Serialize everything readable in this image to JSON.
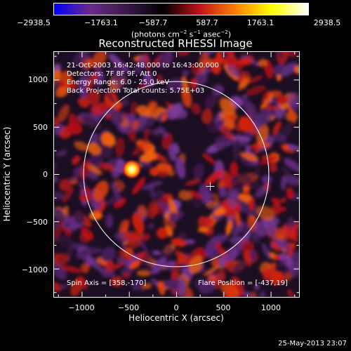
{
  "colorbar": {
    "tick_labels": [
      "−2938.5",
      "−1763.1",
      "−587.7",
      "587.7",
      "1763.1",
      "2938.5"
    ],
    "range": [
      -2938.5,
      2938.5
    ],
    "units_main": "(photons cm",
    "units_exp1": "−2",
    "units_mid1": " s",
    "units_exp2": "−1",
    "units_mid2": " asec",
    "units_exp3": "−2",
    "units_end": ")"
  },
  "chart_data": {
    "type": "heatmap",
    "title": "Reconstructed RHESSI Image",
    "xlabel": "Heliocentric X (arcsec)",
    "ylabel": "Heliocentric Y (arcsec)",
    "xlim": [
      -1300,
      1300
    ],
    "ylim": [
      -1300,
      1300
    ],
    "x_tick_labels": [
      "−1000",
      "−500",
      "0",
      "500",
      "1000"
    ],
    "x_tick_values": [
      -1000,
      -500,
      0,
      500,
      1000
    ],
    "y_tick_labels": [
      "1000",
      "500",
      "0",
      "−500",
      "−1000"
    ],
    "y_tick_values": [
      1000,
      500,
      0,
      -500,
      -1000
    ],
    "solar_limb_center": [
      0,
      0
    ],
    "solar_limb_radius": 980,
    "flare_marker": [
      360,
      -130
    ],
    "bright_source": [
      -470,
      50
    ],
    "colormap": [
      "#0000ff",
      "#6b2b8a",
      "#3a1a48",
      "#000000",
      "#c0101a",
      "#ff8000",
      "#ffff00",
      "#ffffff"
    ]
  },
  "info": {
    "line1": "21-Oct-2003 16:42:48.000 to 16:43:00.000",
    "line2": "Detectors: 7F 8F 9F, Att 0",
    "line3": "Energy Range: 6.0 - 25.0 keV",
    "line4": "Back Projection   Total counts: 5.75E+03",
    "spin_axis": "Spin Axis = [358,-170]",
    "flare_position": "Flare Position = [-437,19]"
  },
  "timestamp": "25-May-2013 23:07"
}
